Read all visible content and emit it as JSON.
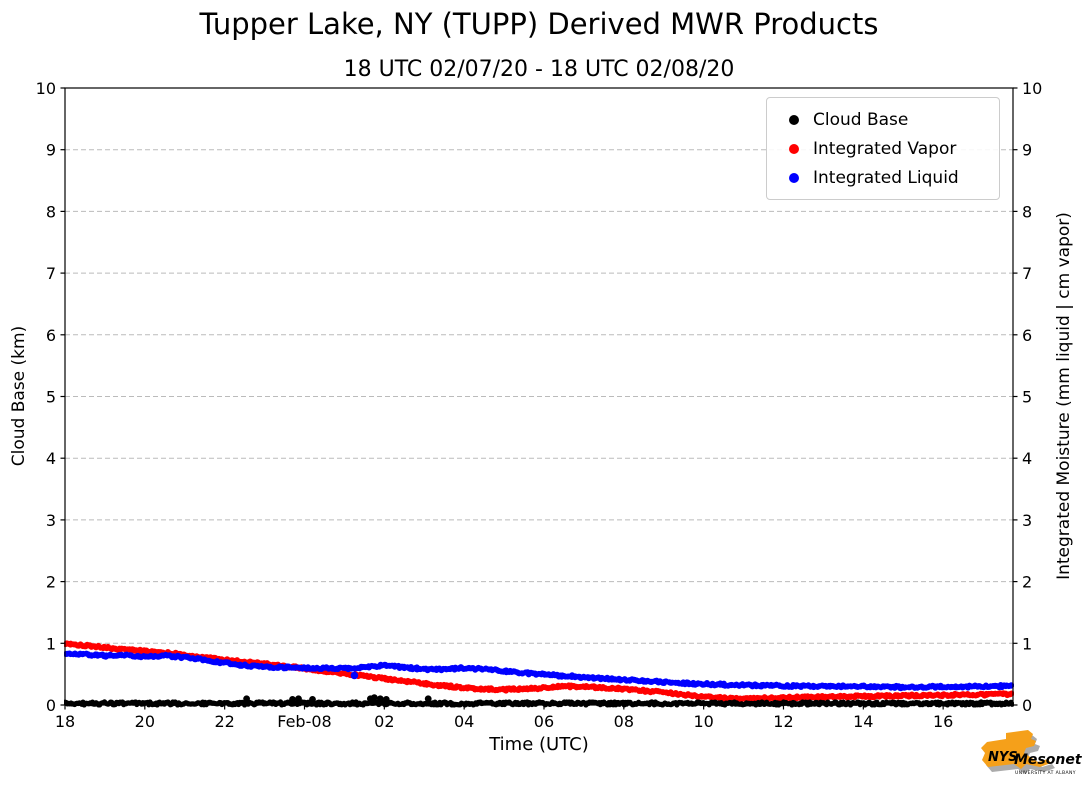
{
  "title": "Tupper Lake, NY (TUPP) Derived MWR Products",
  "subtitle": "18 UTC 02/07/20 - 18 UTC 02/08/20",
  "logo": {
    "nys": "NYS",
    "mesonet": "Mesonet",
    "tagline": "UNIVERSITY AT ALBANY"
  },
  "chart_data": {
    "type": "scatter",
    "title": "Tupper Lake, NY (TUPP) Derived MWR Products",
    "subtitle": "18 UTC 02/07/20 - 18 UTC 02/08/20",
    "xlabel": "Time (UTC)",
    "ylabel_left": "Cloud Base (km)",
    "ylabel_right": "Integrated Moisture (mm liquid | cm vapor)",
    "xlim_hours": [
      0,
      23.75
    ],
    "x_start_label": "18 UTC Feb-07",
    "ylim": [
      0,
      10
    ],
    "y_ticks": [
      0,
      1,
      2,
      3,
      4,
      5,
      6,
      7,
      8,
      9,
      10
    ],
    "x_ticks": [
      {
        "hour": 0,
        "label": "18"
      },
      {
        "hour": 2,
        "label": "20"
      },
      {
        "hour": 4,
        "label": "22"
      },
      {
        "hour": 6,
        "label": "Feb-08"
      },
      {
        "hour": 8,
        "label": "02"
      },
      {
        "hour": 10,
        "label": "04"
      },
      {
        "hour": 12,
        "label": "06"
      },
      {
        "hour": 14,
        "label": "08"
      },
      {
        "hour": 16,
        "label": "10"
      },
      {
        "hour": 18,
        "label": "12"
      },
      {
        "hour": 20,
        "label": "14"
      },
      {
        "hour": 22,
        "label": "16"
      }
    ],
    "grid": {
      "horizontal": true,
      "vertical": false,
      "style": "dashed",
      "color": "#bbbbbb"
    },
    "legend_position": "upper right",
    "legend": [
      {
        "label": "Cloud Base",
        "color": "#000000"
      },
      {
        "label": "Integrated Vapor",
        "color": "#ff0000"
      },
      {
        "label": "Integrated Liquid",
        "color": "#0000ff"
      }
    ],
    "series": [
      {
        "name": "Integrated Vapor",
        "color": "#ff0000",
        "axis": "right",
        "units": "cm vapor",
        "marker_r": 3,
        "jitter": 0.018,
        "step": 0.04,
        "seed": 101,
        "anchors": [
          [
            0,
            1.0
          ],
          [
            0.3,
            0.98
          ],
          [
            0.6,
            0.96
          ],
          [
            1,
            0.93
          ],
          [
            1.5,
            0.9
          ],
          [
            2,
            0.88
          ],
          [
            2.5,
            0.85
          ],
          [
            3,
            0.81
          ],
          [
            3.5,
            0.77
          ],
          [
            4,
            0.73
          ],
          [
            4.5,
            0.7
          ],
          [
            5,
            0.67
          ],
          [
            5.5,
            0.63
          ],
          [
            6,
            0.59
          ],
          [
            6.5,
            0.55
          ],
          [
            7,
            0.51
          ],
          [
            7.5,
            0.47
          ],
          [
            8,
            0.43
          ],
          [
            8.5,
            0.39
          ],
          [
            9,
            0.35
          ],
          [
            9.5,
            0.31
          ],
          [
            10,
            0.28
          ],
          [
            10.5,
            0.26
          ],
          [
            11,
            0.25
          ],
          [
            11.5,
            0.26
          ],
          [
            12,
            0.28
          ],
          [
            12.5,
            0.3
          ],
          [
            13,
            0.3
          ],
          [
            13.5,
            0.28
          ],
          [
            14,
            0.26
          ],
          [
            14.5,
            0.23
          ],
          [
            15,
            0.2
          ],
          [
            15.5,
            0.17
          ],
          [
            16,
            0.13
          ],
          [
            16.5,
            0.11
          ],
          [
            17,
            0.1
          ],
          [
            17.5,
            0.11
          ],
          [
            18,
            0.12
          ],
          [
            19,
            0.13
          ],
          [
            20,
            0.14
          ],
          [
            21,
            0.15
          ],
          [
            22,
            0.16
          ],
          [
            23,
            0.17
          ],
          [
            23.75,
            0.18
          ]
        ]
      },
      {
        "name": "Integrated Liquid",
        "color": "#0000ff",
        "axis": "right",
        "units": "mm liquid",
        "marker_r": 3,
        "jitter": 0.018,
        "step": 0.04,
        "seed": 202,
        "anchors": [
          [
            0,
            0.84
          ],
          [
            0.5,
            0.82
          ],
          [
            1,
            0.8
          ],
          [
            1.5,
            0.8
          ],
          [
            2,
            0.79
          ],
          [
            2.5,
            0.8
          ],
          [
            3,
            0.77
          ],
          [
            3.5,
            0.73
          ],
          [
            4,
            0.68
          ],
          [
            4.5,
            0.64
          ],
          [
            5,
            0.62
          ],
          [
            5.5,
            0.61
          ],
          [
            6,
            0.6
          ],
          [
            6.5,
            0.6
          ],
          [
            7,
            0.59
          ],
          [
            7.5,
            0.61
          ],
          [
            8,
            0.64
          ],
          [
            8.5,
            0.61
          ],
          [
            9,
            0.58
          ],
          [
            9.5,
            0.58
          ],
          [
            10,
            0.6
          ],
          [
            10.5,
            0.58
          ],
          [
            11,
            0.55
          ],
          [
            11.5,
            0.52
          ],
          [
            12,
            0.5
          ],
          [
            12.5,
            0.47
          ],
          [
            13,
            0.45
          ],
          [
            13.5,
            0.43
          ],
          [
            14,
            0.41
          ],
          [
            14.5,
            0.39
          ],
          [
            15,
            0.37
          ],
          [
            15.5,
            0.35
          ],
          [
            16,
            0.34
          ],
          [
            16.5,
            0.33
          ],
          [
            17,
            0.32
          ],
          [
            18,
            0.31
          ],
          [
            19,
            0.3
          ],
          [
            20,
            0.3
          ],
          [
            21,
            0.29
          ],
          [
            22,
            0.3
          ],
          [
            23,
            0.3
          ],
          [
            23.75,
            0.31
          ]
        ],
        "points": [
          [
            7.25,
            0.48
          ]
        ]
      },
      {
        "name": "Cloud Base",
        "color": "#000000",
        "axis": "left",
        "units": "km",
        "marker_r": 2.6,
        "seed": 303,
        "baseline": {
          "value": 0,
          "spread": 0.05,
          "step": 0.03,
          "from": 0,
          "to": 23.75
        },
        "points": [
          [
            4.55,
            0.1
          ],
          [
            5.7,
            0.09
          ],
          [
            5.85,
            0.1
          ],
          [
            6.2,
            0.09
          ],
          [
            7.65,
            0.1
          ],
          [
            7.75,
            0.12
          ],
          [
            7.9,
            0.1
          ],
          [
            8.05,
            0.09
          ],
          [
            9.1,
            0.1
          ]
        ]
      }
    ]
  }
}
